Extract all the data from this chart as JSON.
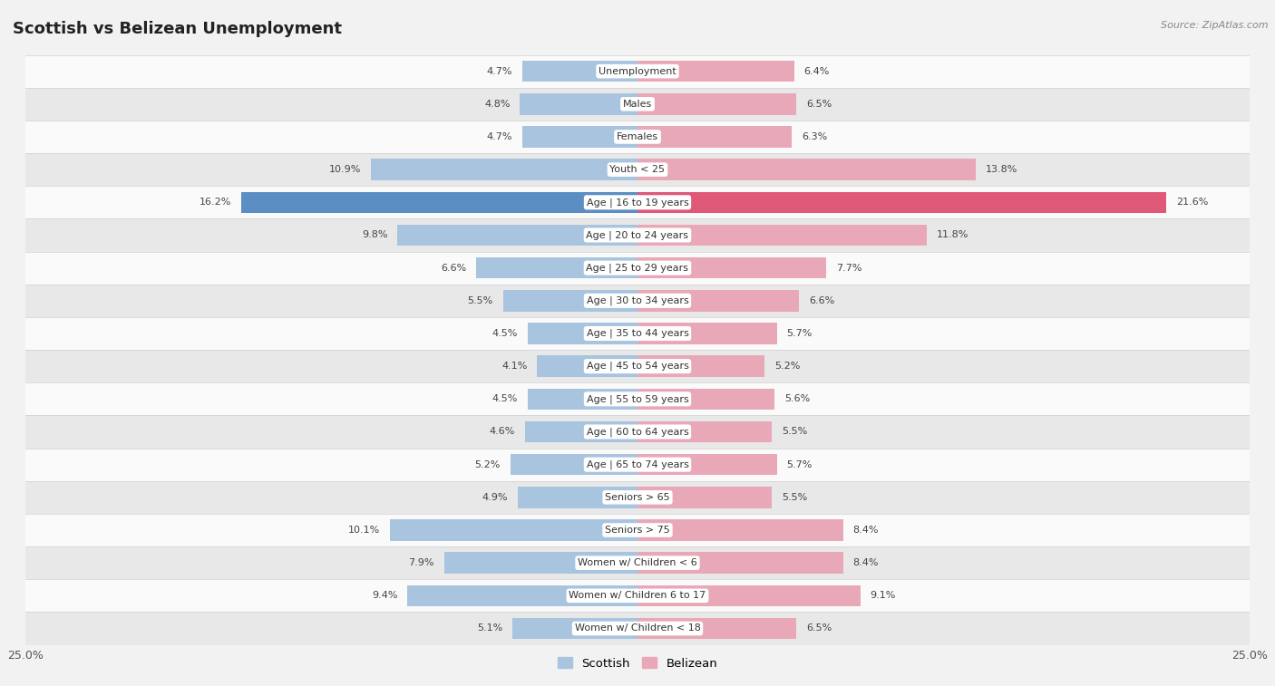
{
  "title": "Scottish vs Belizean Unemployment",
  "source": "Source: ZipAtlas.com",
  "categories": [
    "Unemployment",
    "Males",
    "Females",
    "Youth < 25",
    "Age | 16 to 19 years",
    "Age | 20 to 24 years",
    "Age | 25 to 29 years",
    "Age | 30 to 34 years",
    "Age | 35 to 44 years",
    "Age | 45 to 54 years",
    "Age | 55 to 59 years",
    "Age | 60 to 64 years",
    "Age | 65 to 74 years",
    "Seniors > 65",
    "Seniors > 75",
    "Women w/ Children < 6",
    "Women w/ Children 6 to 17",
    "Women w/ Children < 18"
  ],
  "scottish": [
    4.7,
    4.8,
    4.7,
    10.9,
    16.2,
    9.8,
    6.6,
    5.5,
    4.5,
    4.1,
    4.5,
    4.6,
    5.2,
    4.9,
    10.1,
    7.9,
    9.4,
    5.1
  ],
  "belizean": [
    6.4,
    6.5,
    6.3,
    13.8,
    21.6,
    11.8,
    7.7,
    6.6,
    5.7,
    5.2,
    5.6,
    5.5,
    5.7,
    5.5,
    8.4,
    8.4,
    9.1,
    6.5
  ],
  "scottish_color": "#a8c4de",
  "belizean_color": "#e8a8b8",
  "scottish_color_highlight": "#5b8fc4",
  "belizean_color_highlight": "#e05878",
  "bg_color": "#f2f2f2",
  "row_color_light": "#fafafa",
  "row_color_dark": "#e8e8e8",
  "axis_max": 25.0,
  "bar_height": 0.65,
  "legend_labels": [
    "Scottish",
    "Belizean"
  ]
}
